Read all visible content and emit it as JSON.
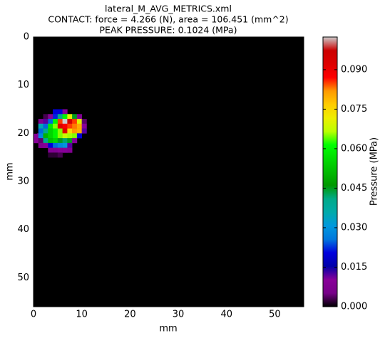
{
  "chart_data": {
    "type": "heatmap",
    "title": [
      "lateral_M_AVG_METRICS.xml",
      "CONTACT: force = 4.266 (N), area = 106.451 (mm^2)",
      "PEAK PRESSURE: 0.1024 (MPa)"
    ],
    "xlabel": "mm",
    "ylabel": "mm",
    "colorbar_label": "Pressure (MPa)",
    "xlim": [
      0,
      56
    ],
    "ylim": [
      0,
      56
    ],
    "y_inverted": true,
    "xticks": [
      0,
      10,
      20,
      30,
      40,
      50
    ],
    "yticks": [
      0,
      10,
      20,
      30,
      40,
      50
    ],
    "colormap": "nipy_spectral",
    "clim": [
      0,
      0.1024
    ],
    "colorbar_ticks": [
      {
        "value": 0,
        "label": "0.000"
      },
      0.015,
      {
        "value": 0.03,
        "label": "0.030"
      },
      0.045,
      {
        "value": 0.06,
        "label": "0.060"
      },
      0.075,
      {
        "value": 0.09,
        "label": "0.090"
      }
    ],
    "x": [
      4,
      5,
      6,
      2,
      3,
      4,
      5,
      6,
      7,
      8,
      9,
      1,
      2,
      3,
      4,
      5,
      6,
      7,
      8,
      9,
      10,
      1,
      2,
      3,
      4,
      5,
      6,
      7,
      8,
      9,
      10,
      1,
      2,
      3,
      4,
      5,
      6,
      7,
      8,
      9,
      10,
      0,
      1,
      2,
      3,
      4,
      5,
      6,
      7,
      8,
      9,
      0,
      1,
      2,
      3,
      4,
      5,
      6,
      7,
      8,
      1,
      2,
      3,
      4,
      5,
      6,
      7,
      3,
      4,
      5,
      6,
      7,
      3,
      4,
      5
    ],
    "y": [
      15,
      15,
      15,
      16,
      16,
      16,
      16,
      16,
      16,
      16,
      16,
      17,
      17,
      17,
      17,
      17,
      17,
      17,
      17,
      17,
      17,
      18,
      18,
      18,
      18,
      18,
      18,
      18,
      18,
      18,
      18,
      19,
      19,
      19,
      19,
      19,
      19,
      19,
      19,
      19,
      19,
      20,
      20,
      20,
      20,
      20,
      20,
      20,
      20,
      20,
      20,
      21,
      21,
      21,
      21,
      21,
      21,
      21,
      21,
      21,
      22,
      22,
      22,
      22,
      22,
      22,
      22,
      23,
      23,
      23,
      23,
      23,
      24,
      24,
      24
    ],
    "values": [
      0.02,
      0.02,
      0.01,
      0.003,
      0.01,
      0.022,
      0.04,
      0.06,
      0.07,
      0.045,
      0.008,
      0.008,
      0.012,
      0.025,
      0.06,
      0.085,
      0.1024,
      0.095,
      0.085,
      0.07,
      0.004,
      0.035,
      0.025,
      0.058,
      0.065,
      0.093,
      0.088,
      0.085,
      0.083,
      0.08,
      0.01,
      0.025,
      0.04,
      0.055,
      0.06,
      0.065,
      0.092,
      0.075,
      0.082,
      0.08,
      0.012,
      0.01,
      0.028,
      0.05,
      0.055,
      0.06,
      0.065,
      0.068,
      0.066,
      0.065,
      0.02,
      0.01,
      0.004,
      0.04,
      0.052,
      0.055,
      0.045,
      0.042,
      0.045,
      0.01,
      0.008,
      0.01,
      0.02,
      0.025,
      0.028,
      0.03,
      0.012,
      0.008,
      0.008,
      0.01,
      0.01,
      0.008,
      0.002,
      0.002,
      0.003
    ]
  }
}
